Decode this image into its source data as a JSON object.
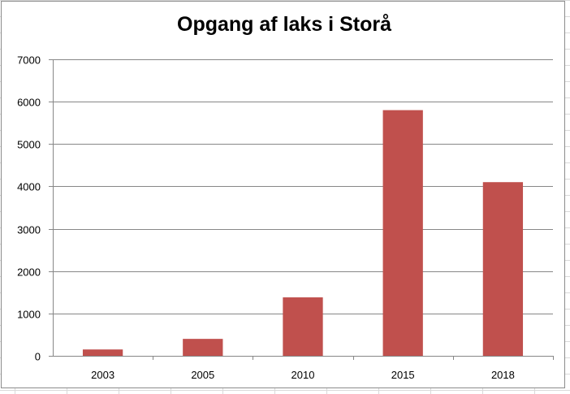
{
  "chart_data": {
    "type": "bar",
    "title": "Opgang af laks i Storå",
    "categories": [
      "2003",
      "2005",
      "2010",
      "2015",
      "2018"
    ],
    "values": [
      150,
      400,
      1380,
      5800,
      4100
    ],
    "ylim": [
      0,
      7000
    ],
    "yticks": [
      0,
      1000,
      2000,
      3000,
      4000,
      5000,
      6000,
      7000
    ],
    "ytick_labels": [
      "0",
      "1000",
      "2000",
      "3000",
      "4000",
      "5000",
      "6000",
      "7000"
    ],
    "xlabel": "",
    "ylabel": "",
    "grid": true,
    "legend": "none",
    "bar_color": "#c0504d",
    "grid_color": "#878787"
  }
}
